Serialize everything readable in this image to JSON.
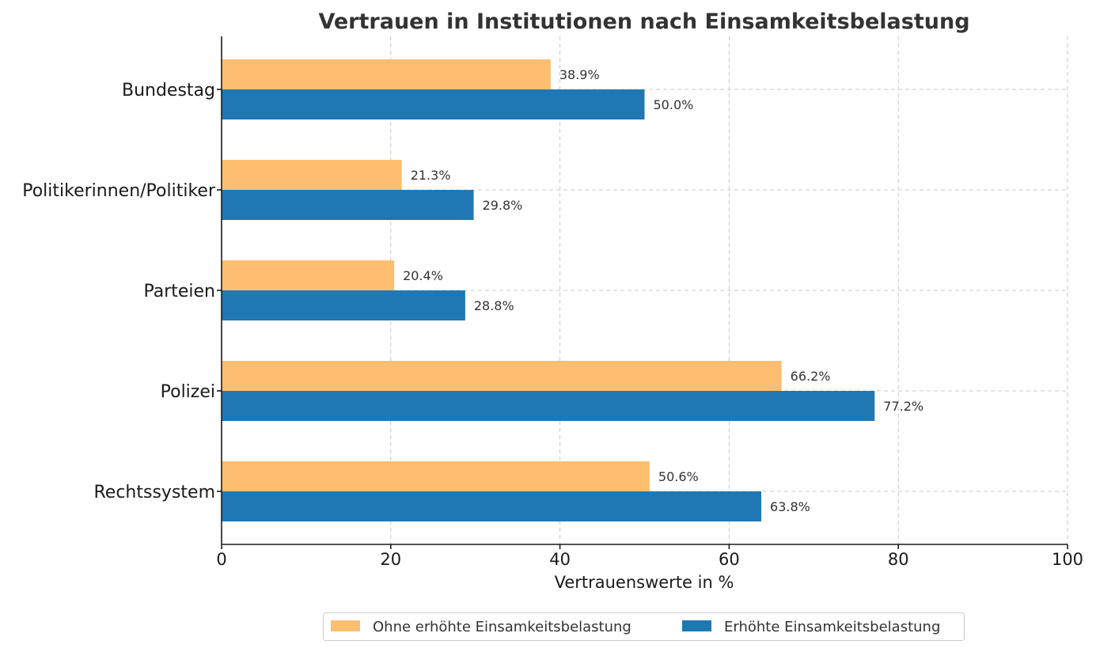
{
  "chart_data": {
    "type": "bar",
    "orientation": "horizontal",
    "title": "Vertrauen in Institutionen nach Einsamkeitsbelastung",
    "xlabel": "Vertrauenswerte in %",
    "ylabel": "",
    "xlim": [
      0,
      100
    ],
    "xticks": [
      0,
      20,
      40,
      60,
      80,
      100
    ],
    "categories": [
      "Bundestag",
      "Politikerinnen/Politiker",
      "Parteien",
      "Polizei",
      "Rechtssystem"
    ],
    "series": [
      {
        "name": "Ohne erhöhte Einsamkeitsbelastung",
        "color": "#FDBF6F",
        "values": [
          38.9,
          21.3,
          20.4,
          66.2,
          50.6
        ],
        "labels": [
          "38.9%",
          "21.3%",
          "20.4%",
          "66.2%",
          "50.6%"
        ]
      },
      {
        "name": "Erhöhte Einsamkeitsbelastung",
        "color": "#1F78B4",
        "values": [
          50.0,
          29.8,
          28.8,
          77.2,
          63.8
        ],
        "labels": [
          "50.0%",
          "29.8%",
          "28.8%",
          "77.2%",
          "63.8%"
        ]
      }
    ],
    "grid": true,
    "legend_position": "bottom-center"
  }
}
